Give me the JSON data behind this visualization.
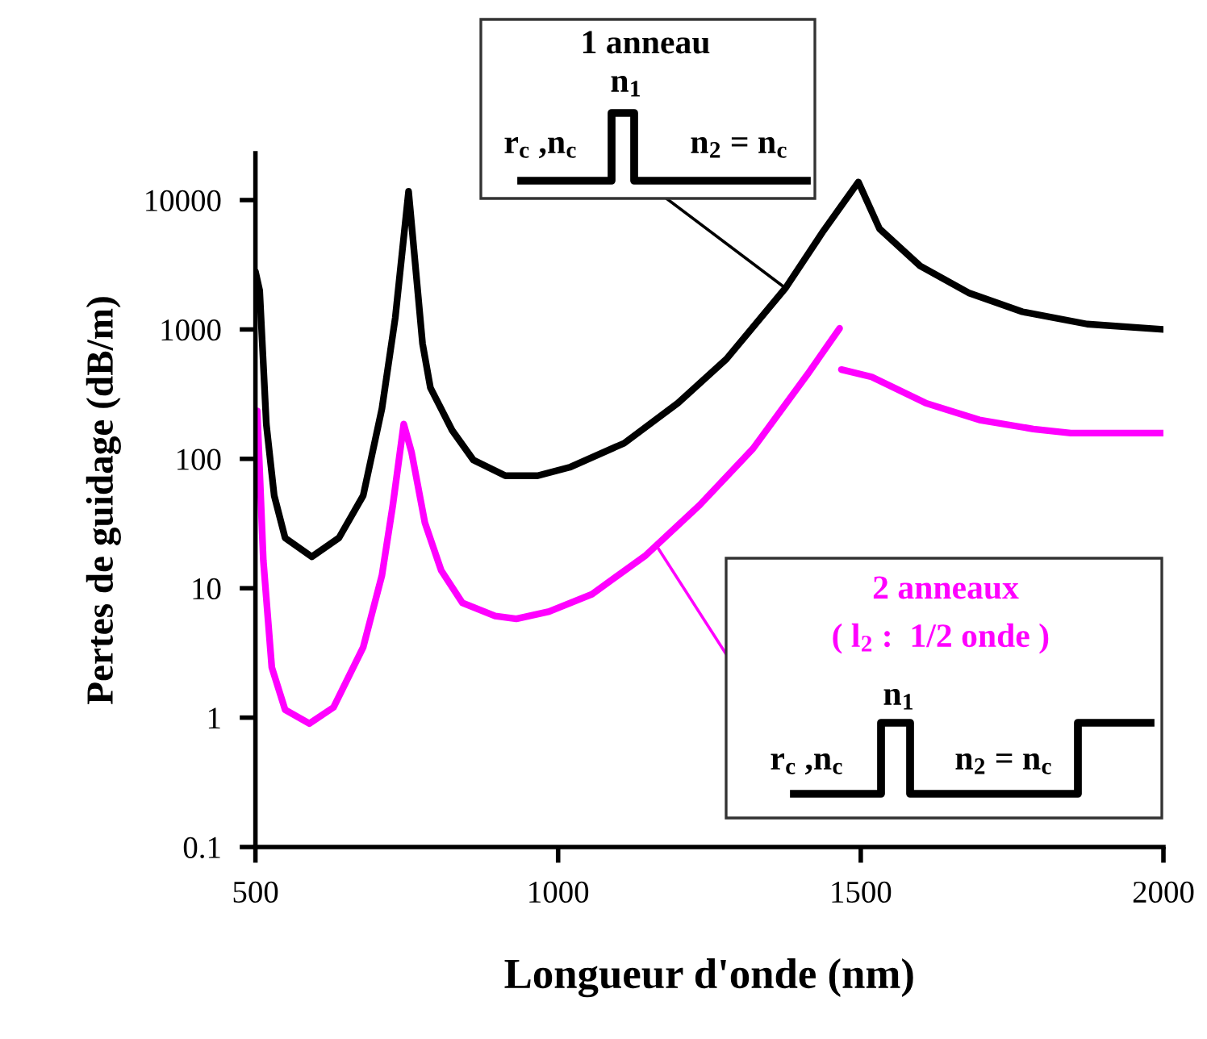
{
  "chart_data": {
    "type": "line",
    "xlabel": "Longueur d'onde (nm)",
    "ylabel": "Pertes de guidage (dB/m)",
    "log": "y",
    "xlim": [
      500,
      2000
    ],
    "xticks": [
      500,
      1000,
      1500,
      2000
    ],
    "ylim": [
      0.1,
      23000
    ],
    "yticks": [
      0.1,
      1,
      10,
      100,
      1000,
      10000
    ],
    "series": [
      {
        "color": "#000000",
        "x": [
          500,
          507,
          518,
          531,
          549,
          593,
          638,
          678,
          709,
          731,
          753,
          776,
          789,
          825,
          860,
          913,
          966,
          1019,
          1109,
          1198,
          1278,
          1376,
          1438,
          1496,
          1531,
          1598,
          1678,
          1767,
          1874,
          2000
        ],
        "values": [
          2800,
          2000,
          185,
          52,
          24.5,
          17.5,
          24.5,
          52,
          245,
          1230,
          11700,
          780,
          355,
          166,
          98,
          74,
          74,
          86,
          132,
          270,
          590,
          2100,
          5750,
          13800,
          6000,
          3100,
          1920,
          1370,
          1100,
          1000
        ]
      },
      {
        "color": "#ff00ff",
        "x": [
          503,
          513,
          527,
          549,
          589,
          629,
          678,
          709,
          727,
          745,
          758,
          780,
          807,
          842,
          896,
          931,
          985,
          1056,
          1145,
          1234,
          1322,
          1412,
          1465,
          1466,
          1468,
          1518,
          1607,
          1696,
          1785,
          1847,
          2000
        ],
        "values": [
          235,
          16.5,
          2.45,
          1.15,
          0.9,
          1.2,
          3.5,
          12.6,
          44,
          186,
          112,
          32,
          13.7,
          7.7,
          6.1,
          5.8,
          6.6,
          9.0,
          18,
          44,
          120,
          450,
          1020,
          null,
          490,
          430,
          270,
          200,
          170,
          158,
          158
        ]
      }
    ],
    "annotations": [
      "1 anneau",
      "n$_{1}$",
      "r$_{c}$ ,n$_{c}$",
      "n$_{2}$ = n$_{c}$",
      "2 anneaux",
      "( l$_{2}$ :  1/2 onde )",
      "n$_{1}$",
      "r$_{c}$ ,n$_{c}$",
      "n$_{2}$ = n$_{c}$"
    ]
  }
}
